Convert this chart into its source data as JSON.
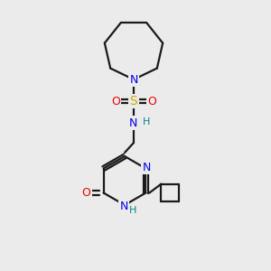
{
  "bg_color": "#ebebeb",
  "atom_colors": {
    "C": "#000000",
    "N": "#0000ee",
    "O": "#ee0000",
    "S": "#ccaa00",
    "H": "#008888"
  },
  "bond_color": "#1a1a1a",
  "bond_width": 1.6
}
